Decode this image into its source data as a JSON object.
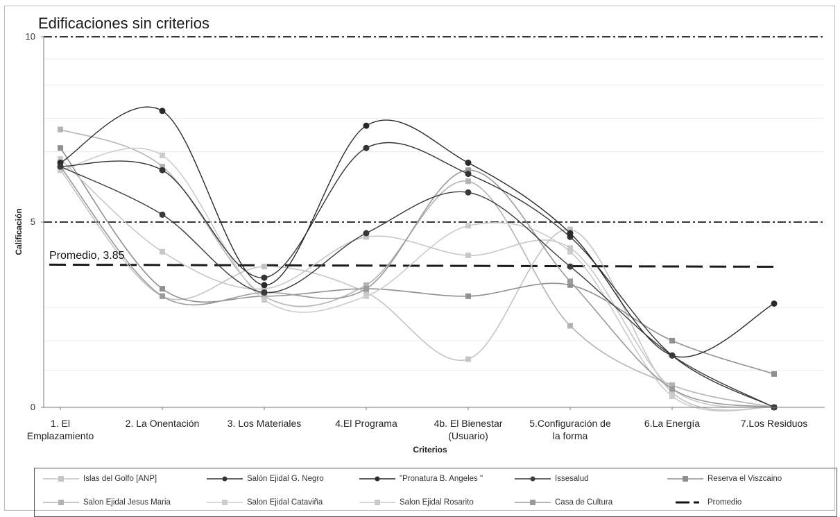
{
  "chart_data": {
    "type": "line",
    "title": "Edificaciones sin criterios",
    "xlabel": "Criterios",
    "ylabel": "Calificación",
    "ylim": [
      0,
      10
    ],
    "yticks": [
      "0",
      "5",
      "10"
    ],
    "categories": [
      "1. El\nEmplazamiento",
      "2. La Onentación",
      "3. Los Materiales",
      "4.El Programa",
      "4b. El Bienestar\n(Usuario)",
      "5.Configuración de\nla forma",
      "6.La Energía",
      "7.Los Residuos"
    ],
    "series": [
      {
        "name": "Islas del Golfo [ANP]",
        "color": "#c4c4c4",
        "dark": false,
        "values": [
          6.4,
          3.0,
          3.8,
          3.1,
          1.3,
          4.8,
          0.4,
          0.0
        ]
      },
      {
        "name": "Salón Ejidal G. Negro",
        "color": "#333333",
        "dark": true,
        "values": [
          6.5,
          6.4,
          3.5,
          7.0,
          6.3,
          4.6,
          1.4,
          0.0
        ]
      },
      {
        "name": "\"Pronatura B. Angeles \"",
        "color": "#2a2a2a",
        "dark": true,
        "values": [
          6.6,
          8.0,
          3.3,
          7.6,
          6.6,
          4.7,
          1.4,
          2.8
        ]
      },
      {
        "name": "Issesalud",
        "color": "#3a3a3a",
        "dark": true,
        "values": [
          6.5,
          5.2,
          3.1,
          4.7,
          5.8,
          3.8,
          1.4,
          0.0
        ]
      },
      {
        "name": "Reserva el Viszcaino",
        "color": "#909090",
        "dark": false,
        "values": [
          7.0,
          3.2,
          3.0,
          3.2,
          3.0,
          3.3,
          1.8,
          0.9
        ]
      },
      {
        "name": "Salon Ejidal Jesus Maria",
        "color": "#b4b4b4",
        "dark": false,
        "values": [
          7.5,
          6.5,
          3.0,
          3.3,
          6.1,
          2.2,
          0.6,
          0.0
        ]
      },
      {
        "name": "Salon Ejidal Cataviña",
        "color": "#cccccc",
        "dark": false,
        "values": [
          6.4,
          6.8,
          2.9,
          3.0,
          4.9,
          4.2,
          0.3,
          0.0
        ]
      },
      {
        "name": "Salon Ejidal Rosarito",
        "color": "#c8c8c8",
        "dark": false,
        "values": [
          6.7,
          4.2,
          3.2,
          4.6,
          4.1,
          4.3,
          0.5,
          0.0
        ]
      },
      {
        "name": "Casa de Cultura",
        "color": "#9a9a9a",
        "dark": false,
        "values": [
          6.5,
          3.0,
          3.1,
          3.2,
          6.4,
          3.4,
          0.5,
          0.0
        ]
      }
    ],
    "reference_lines": [
      {
        "name": "Promedio",
        "value": 3.85,
        "label": "Promedio, 3.85",
        "style": "dashed"
      },
      {
        "value": 5,
        "style": "dash-dot"
      },
      {
        "value": 10,
        "style": "dash-dot"
      }
    ],
    "legend_position": "bottom",
    "legend_extra": {
      "name": "Promedio"
    }
  }
}
